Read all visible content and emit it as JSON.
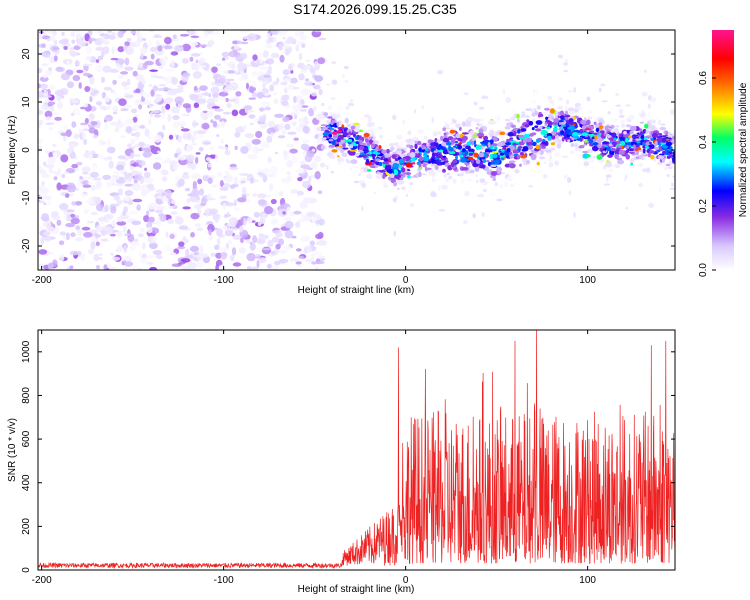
{
  "title": "S174.2026.099.15.25.C35",
  "chart_data": [
    {
      "type": "heatmap",
      "xlabel": "Height of straight line (km)",
      "ylabel": "Frequency (Hz)",
      "xlim": [
        -202,
        148
      ],
      "ylim": [
        -25,
        25
      ],
      "xticks": [
        -200,
        -100,
        0,
        100
      ],
      "yticks": [
        -20,
        -10,
        0,
        10,
        20
      ],
      "colorbar": {
        "label": "Normalized spectral amplitude",
        "range": [
          0,
          0.75
        ],
        "ticks": [
          0.0,
          0.2,
          0.4,
          0.6
        ],
        "colors": [
          "#ffffff",
          "#d9c8ff",
          "#8a2be2",
          "#0000ff",
          "#00ffff",
          "#00ff66",
          "#ffff00",
          "#ff6600",
          "#ff0000",
          "#ff1493"
        ]
      },
      "regions": [
        {
          "x_range": [
            -202,
            -45
          ],
          "description_level": "noise",
          "freq_range": [
            -25,
            25
          ],
          "amplitude": [
            0.0,
            0.15
          ]
        },
        {
          "x_range": [
            -45,
            148
          ],
          "description_level": "signal_band",
          "amplitude": [
            0.05,
            0.75
          ]
        }
      ],
      "signal_center_freq": [
        {
          "x": -45,
          "y": 4
        },
        {
          "x": -30,
          "y": 2
        },
        {
          "x": -15,
          "y": -2
        },
        {
          "x": -5,
          "y": -4
        },
        {
          "x": 10,
          "y": -1
        },
        {
          "x": 30,
          "y": 0
        },
        {
          "x": 50,
          "y": -1
        },
        {
          "x": 70,
          "y": 3
        },
        {
          "x": 85,
          "y": 5
        },
        {
          "x": 100,
          "y": 3
        },
        {
          "x": 115,
          "y": 1
        },
        {
          "x": 130,
          "y": 2
        },
        {
          "x": 148,
          "y": 0
        }
      ]
    },
    {
      "type": "line",
      "xlabel": "Height of straight line (km)",
      "ylabel": "SNR (10 * v/v)",
      "xlim": [
        -202,
        148
      ],
      "ylim": [
        0,
        1100
      ],
      "xticks": [
        -200,
        -100,
        0,
        100
      ],
      "yticks": [
        0,
        200,
        400,
        600,
        800,
        1000
      ],
      "color": "#ee2222",
      "segments": [
        {
          "x_range": [
            -202,
            -35
          ],
          "mean": 15,
          "spread": 15
        },
        {
          "x_range": [
            -35,
            -2
          ],
          "mean": 120,
          "spread": 150
        },
        {
          "x_range": [
            -2,
            148
          ],
          "mean": 300,
          "spread": 320
        }
      ],
      "peaks": [
        {
          "x": -4,
          "y": 1020
        },
        {
          "x": 60,
          "y": 1050
        },
        {
          "x": 72,
          "y": 1100
        },
        {
          "x": 135,
          "y": 1030
        },
        {
          "x": 143,
          "y": 1050
        }
      ]
    }
  ]
}
